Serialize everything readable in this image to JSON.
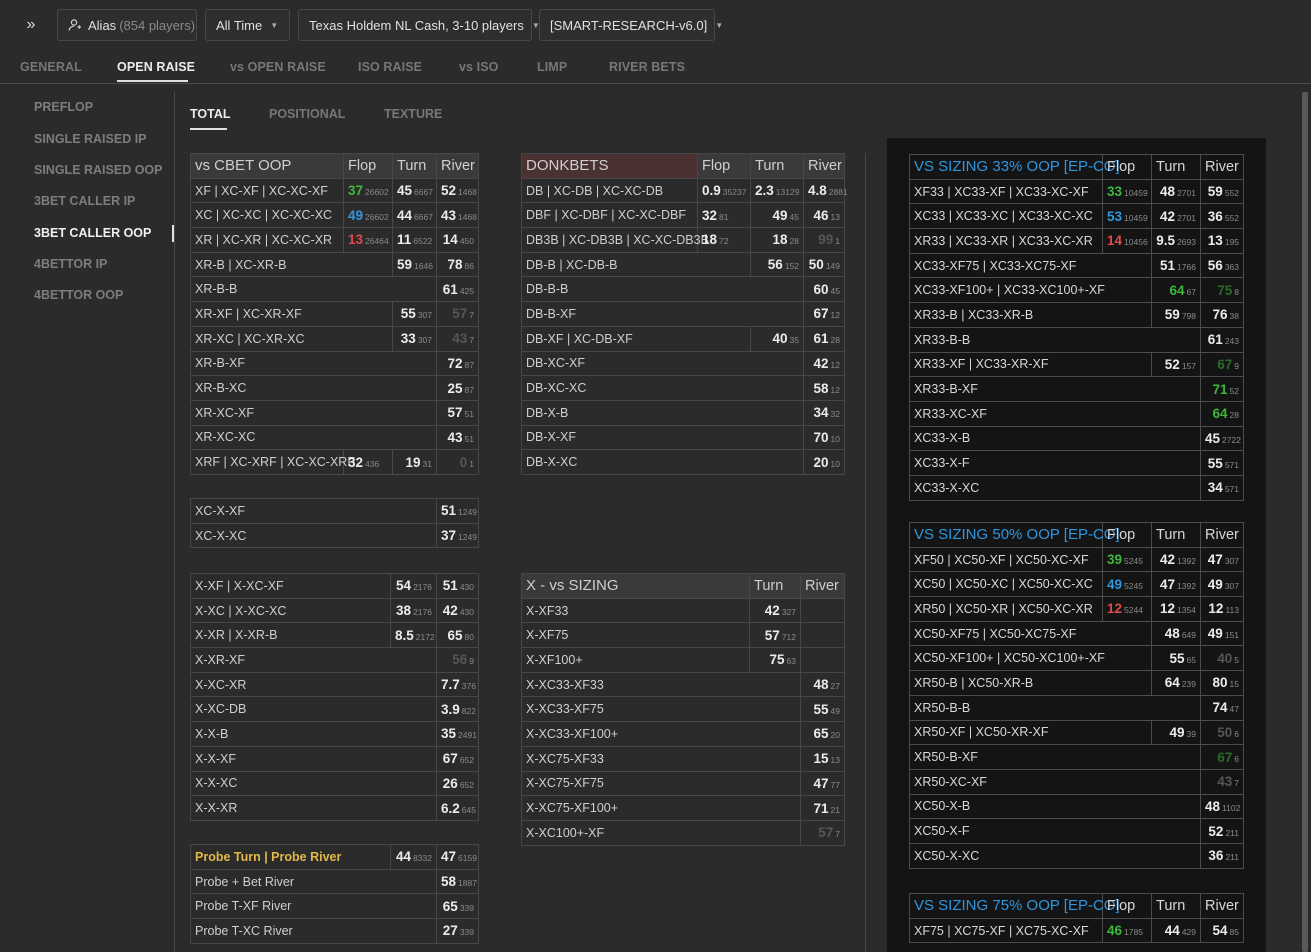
{
  "topbar": {
    "expand": "»",
    "alias_label": "Alias",
    "alias_count": "(854 players)",
    "time": "All Time",
    "game": "Texas Holdem NL Cash, 3-10 players",
    "preset": "[SMART-RESEARCH-v6.0]"
  },
  "main_tabs": [
    "GENERAL",
    "OPEN RAISE",
    "vs OPEN RAISE",
    "ISO RAISE",
    "vs ISO",
    "LIMP",
    "RIVER BETS"
  ],
  "sidebar": [
    "PREFLOP",
    "SINGLE RAISED IP",
    "SINGLE RAISED OOP",
    "3BET CALLER IP",
    "3BET CALLER OOP",
    "4BETTOR IP",
    "4BETTOR OOP"
  ],
  "sub_tabs": [
    "TOTAL",
    "POSITIONAL",
    "TEXTURE"
  ],
  "tables": {
    "cbet": {
      "head": [
        "vs CBET OOP",
        "Flop",
        "Turn",
        "River"
      ],
      "rows": [
        {
          "l": "XF | XC-XF | XC-XC-XF",
          "f": [
            "37",
            "26602",
            "green"
          ],
          "t": [
            "45",
            "6667"
          ],
          "r": [
            "52",
            "1468"
          ]
        },
        {
          "l": "XC | XC-XC | XC-XC-XC",
          "f": [
            "49",
            "26602",
            "blue"
          ],
          "t": [
            "44",
            "6667"
          ],
          "r": [
            "43",
            "1468"
          ]
        },
        {
          "l": "XR | XC-XR | XC-XC-XR",
          "f": [
            "13",
            "26464",
            "red"
          ],
          "t": [
            "11",
            "6522"
          ],
          "r": [
            "14",
            "450"
          ]
        },
        {
          "l": "XR-B | XC-XR-B",
          "t": [
            "59",
            "1646"
          ],
          "r": [
            "78",
            "86"
          ]
        },
        {
          "l": "XR-B-B",
          "r": [
            "61",
            "425"
          ]
        },
        {
          "l": "XR-XF | XC-XR-XF",
          "t": [
            "55",
            "307"
          ],
          "r": [
            "57",
            "7",
            "dim"
          ]
        },
        {
          "l": "XR-XC | XC-XR-XC",
          "t": [
            "33",
            "307"
          ],
          "r": [
            "43",
            "7",
            "dim"
          ]
        },
        {
          "l": "XR-B-XF",
          "r": [
            "72",
            "87"
          ]
        },
        {
          "l": "XR-B-XC",
          "r": [
            "25",
            "87"
          ]
        },
        {
          "l": "XR-XC-XF",
          "r": [
            "57",
            "51"
          ]
        },
        {
          "l": "XR-XC-XC",
          "r": [
            "43",
            "51"
          ]
        },
        {
          "l": "XRF | XC-XRF | XC-XC-XRF",
          "f": [
            "32",
            "436"
          ],
          "t": [
            "19",
            "31"
          ],
          "r": [
            "0",
            "1",
            "dim"
          ]
        }
      ]
    },
    "xx": {
      "rows": [
        {
          "l": "XC-X-XF",
          "r": [
            "51",
            "1249"
          ]
        },
        {
          "l": "XC-X-XC",
          "r": [
            "37",
            "1249"
          ]
        }
      ]
    },
    "x": {
      "rows": [
        {
          "l": "X-XF | X-XC-XF",
          "t": [
            "54",
            "2176"
          ],
          "r": [
            "51",
            "430"
          ]
        },
        {
          "l": "X-XC | X-XC-XC",
          "t": [
            "38",
            "2176"
          ],
          "r": [
            "42",
            "430"
          ]
        },
        {
          "l": "X-XR | X-XR-B",
          "t": [
            "8.5",
            "2172"
          ],
          "r": [
            "65",
            "80"
          ]
        },
        {
          "l": "X-XR-XF",
          "r": [
            "56",
            "9",
            "dim"
          ]
        },
        {
          "l": "X-XC-XR",
          "r": [
            "7.7",
            "376"
          ]
        },
        {
          "l": "X-XC-DB",
          "r": [
            "3.9",
            "822"
          ]
        },
        {
          "l": "X-X-B",
          "r": [
            "35",
            "2491"
          ]
        },
        {
          "l": "X-X-XF",
          "r": [
            "67",
            "652"
          ]
        },
        {
          "l": "X-X-XC",
          "r": [
            "26",
            "652"
          ]
        },
        {
          "l": "X-X-XR",
          "r": [
            "6.2",
            "645"
          ]
        }
      ]
    },
    "probe": {
      "rows": [
        {
          "l": "Probe Turn | Probe River",
          "yellow": true,
          "t": [
            "44",
            "8332"
          ],
          "r": [
            "47",
            "6159"
          ]
        },
        {
          "l": "Probe + Bet River",
          "r": [
            "58",
            "1887"
          ]
        },
        {
          "l": "Probe T-XF River",
          "r": [
            "65",
            "339"
          ]
        },
        {
          "l": "Probe T-XC River",
          "r": [
            "27",
            "339"
          ]
        }
      ]
    },
    "donk": {
      "head": [
        "DONKBETS",
        "Flop",
        "Turn",
        "River"
      ],
      "rows": [
        {
          "l": "DB | XC-DB | XC-XC-DB",
          "f": [
            "0.9",
            "35237"
          ],
          "t": [
            "2.3",
            "13129"
          ],
          "r": [
            "4.8",
            "2881"
          ]
        },
        {
          "l": "DBF | XC-DBF | XC-XC-DBF",
          "f": [
            "32",
            "81"
          ],
          "t": [
            "49",
            "45"
          ],
          "r": [
            "46",
            "13"
          ]
        },
        {
          "l": "DB3B | XC-DB3B | XC-XC-DB3B",
          "f": [
            "18",
            "72"
          ],
          "t": [
            "18",
            "28"
          ],
          "r": [
            "99",
            "1",
            "dim"
          ]
        },
        {
          "l": "DB-B | XC-DB-B",
          "t": [
            "56",
            "152"
          ],
          "r": [
            "50",
            "149"
          ]
        },
        {
          "l": "DB-B-B",
          "r": [
            "60",
            "45"
          ]
        },
        {
          "l": "DB-B-XF",
          "r": [
            "67",
            "12"
          ]
        },
        {
          "l": "DB-XF | XC-DB-XF",
          "t": [
            "40",
            "35"
          ],
          "r": [
            "61",
            "28"
          ]
        },
        {
          "l": "DB-XC-XF",
          "r": [
            "42",
            "12"
          ]
        },
        {
          "l": "DB-XC-XC",
          "r": [
            "58",
            "12"
          ]
        },
        {
          "l": "DB-X-B",
          "r": [
            "34",
            "32"
          ]
        },
        {
          "l": "DB-X-XF",
          "r": [
            "70",
            "10"
          ]
        },
        {
          "l": "DB-X-XC",
          "r": [
            "20",
            "10"
          ]
        }
      ]
    },
    "sizing": {
      "head": [
        "X - vs SIZING",
        "Turn",
        "River"
      ],
      "rows": [
        {
          "l": "X-XF33",
          "t": [
            "42",
            "327"
          ],
          "r": null
        },
        {
          "l": "X-XF75",
          "t": [
            "57",
            "712"
          ],
          "r": null
        },
        {
          "l": "X-XF100+",
          "t": [
            "75",
            "63"
          ],
          "r": null
        },
        {
          "l": "X-XC33-XF33",
          "r": [
            "48",
            "27"
          ]
        },
        {
          "l": "X-XC33-XF75",
          "r": [
            "55",
            "49"
          ]
        },
        {
          "l": "X-XC33-XF100+",
          "r": [
            "65",
            "20"
          ]
        },
        {
          "l": "X-XC75-XF33",
          "r": [
            "15",
            "13"
          ]
        },
        {
          "l": "X-XC75-XF75",
          "r": [
            "47",
            "77"
          ]
        },
        {
          "l": "X-XC75-XF100+",
          "r": [
            "71",
            "21"
          ]
        },
        {
          "l": "X-XC100+-XF",
          "r": [
            "57",
            "7",
            "dim"
          ]
        }
      ]
    },
    "s33": {
      "head": [
        "VS SIZING 33% OOP [EP-CO]",
        "Flop",
        "Turn",
        "River"
      ],
      "rows": [
        {
          "l": "XF33 | XC33-XF | XC33-XC-XF",
          "f": [
            "33",
            "10459",
            "green"
          ],
          "t": [
            "48",
            "2701"
          ],
          "r": [
            "59",
            "552"
          ]
        },
        {
          "l": "XC33 | XC33-XC | XC33-XC-XC",
          "f": [
            "53",
            "10459",
            "blue"
          ],
          "t": [
            "42",
            "2701"
          ],
          "r": [
            "36",
            "552"
          ]
        },
        {
          "l": "XR33 | XC33-XR | XC33-XC-XR",
          "f": [
            "14",
            "10456",
            "red"
          ],
          "t": [
            "9.5",
            "2693"
          ],
          "r": [
            "13",
            "195"
          ]
        },
        {
          "l": "XC33-XF75 | XC33-XC75-XF",
          "t": [
            "51",
            "1766"
          ],
          "r": [
            "56",
            "363"
          ]
        },
        {
          "l": "XC33-XF100+ | XC33-XC100+-XF",
          "t": [
            "64",
            "67",
            "green"
          ],
          "r": [
            "75",
            "8",
            "dimgreen"
          ]
        },
        {
          "l": "XR33-B | XC33-XR-B",
          "t": [
            "59",
            "798"
          ],
          "r": [
            "76",
            "38"
          ]
        },
        {
          "l": "XR33-B-B",
          "r": [
            "61",
            "243"
          ]
        },
        {
          "l": "XR33-XF | XC33-XR-XF",
          "t": [
            "52",
            "157"
          ],
          "r": [
            "67",
            "9",
            "dimgreen"
          ]
        },
        {
          "l": "XR33-B-XF",
          "r": [
            "71",
            "52",
            "green"
          ]
        },
        {
          "l": "XR33-XC-XF",
          "r": [
            "64",
            "28",
            "green"
          ]
        },
        {
          "l": "XC33-X-B",
          "r": [
            "45",
            "2722"
          ]
        },
        {
          "l": "XC33-X-F",
          "r": [
            "55",
            "571"
          ]
        },
        {
          "l": "XC33-X-XC",
          "r": [
            "34",
            "571"
          ]
        }
      ]
    },
    "s50": {
      "head": [
        "VS SIZING 50% OOP [EP-CO]",
        "Flop",
        "Turn",
        "River"
      ],
      "rows": [
        {
          "l": "XF50 | XC50-XF | XC50-XC-XF",
          "f": [
            "39",
            "5245",
            "green"
          ],
          "t": [
            "42",
            "1392"
          ],
          "r": [
            "47",
            "307"
          ]
        },
        {
          "l": "XC50 | XC50-XC | XC50-XC-XC",
          "f": [
            "49",
            "5245",
            "blue"
          ],
          "t": [
            "47",
            "1392"
          ],
          "r": [
            "49",
            "307"
          ]
        },
        {
          "l": "XR50 | XC50-XR | XC50-XC-XR",
          "f": [
            "12",
            "5244",
            "red"
          ],
          "t": [
            "12",
            "1354"
          ],
          "r": [
            "12",
            "113"
          ]
        },
        {
          "l": "XC50-XF75 | XC50-XC75-XF",
          "t": [
            "48",
            "649"
          ],
          "r": [
            "49",
            "151"
          ]
        },
        {
          "l": "XC50-XF100+ | XC50-XC100+-XF",
          "t": [
            "55",
            "65"
          ],
          "r": [
            "40",
            "5",
            "dim"
          ]
        },
        {
          "l": "XR50-B | XC50-XR-B",
          "t": [
            "64",
            "239"
          ],
          "r": [
            "80",
            "15"
          ]
        },
        {
          "l": "XR50-B-B",
          "r": [
            "74",
            "47"
          ]
        },
        {
          "l": "XR50-XF | XC50-XR-XF",
          "t": [
            "49",
            "39"
          ],
          "r": [
            "50",
            "6",
            "dim"
          ]
        },
        {
          "l": "XR50-B-XF",
          "r": [
            "67",
            "6",
            "dimgreen"
          ]
        },
        {
          "l": "XR50-XC-XF",
          "r": [
            "43",
            "7",
            "dim"
          ]
        },
        {
          "l": "XC50-X-B",
          "r": [
            "48",
            "1102"
          ]
        },
        {
          "l": "XC50-X-F",
          "r": [
            "52",
            "211"
          ]
        },
        {
          "l": "XC50-X-XC",
          "r": [
            "36",
            "211"
          ]
        }
      ]
    },
    "s75": {
      "head": [
        "VS SIZING 75% OOP [EP-CO]",
        "Flop",
        "Turn",
        "River"
      ],
      "rows": [
        {
          "l": "XF75 | XC75-XF | XC75-XC-XF",
          "f": [
            "46",
            "1785",
            "green"
          ],
          "t": [
            "44",
            "429"
          ],
          "r": [
            "54",
            "85"
          ]
        }
      ]
    }
  }
}
